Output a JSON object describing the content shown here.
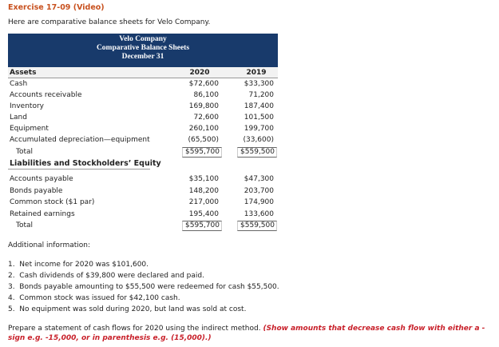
{
  "header": {
    "title": "Exercise 17-09 (Video)",
    "intro": "Here are comparative balance sheets for Velo Company."
  },
  "table": {
    "title": [
      "Velo Company",
      "Comparative Balance Sheets",
      "December 31"
    ],
    "columns": [
      "Assets",
      "2020",
      "2019"
    ],
    "asset_rows": [
      [
        "Cash",
        "$72,600",
        "$33,300"
      ],
      [
        "Accounts receivable",
        "86,100",
        "71,200"
      ],
      [
        "Inventory",
        "169,800",
        "187,400"
      ],
      [
        "Land",
        "72,600",
        "101,500"
      ],
      [
        "Equipment",
        "260,100",
        "199,700"
      ],
      [
        "Accumulated depreciation—equipment",
        "(65,500)",
        "(33,600)"
      ]
    ],
    "asset_total": [
      "Total",
      "$595,700",
      "$559,500"
    ],
    "liabilities_heading": "Liabilities and Stockholders’ Equity",
    "liability_rows": [
      [
        "Accounts payable",
        "$35,100",
        "$47,300"
      ],
      [
        "Bonds payable",
        "148,200",
        "203,700"
      ],
      [
        "Common stock ($1 par)",
        "217,000",
        "174,900"
      ],
      [
        "Retained earnings",
        "195,400",
        "133,600"
      ]
    ],
    "liability_total": [
      "Total",
      "$595,700",
      "$559,500"
    ]
  },
  "additional": {
    "heading": "Additional information:",
    "items": [
      "1.  Net income for 2020 was $101,600.",
      "2.  Cash dividends of $39,800 were declared and paid.",
      "3.  Bonds payable amounting to $55,500 were redeemed for cash $55,500.",
      "4.  Common stock was issued for $42,100 cash.",
      "5.  No equipment was sold during 2020, but land was sold at cost."
    ]
  },
  "instruction": {
    "text": "Prepare a statement of cash flows for 2020 using the indirect method.",
    "note": "(Show amounts that decrease cash flow with either a - sign e.g. -15,000, or in parenthesis e.g. (15,000).)"
  }
}
